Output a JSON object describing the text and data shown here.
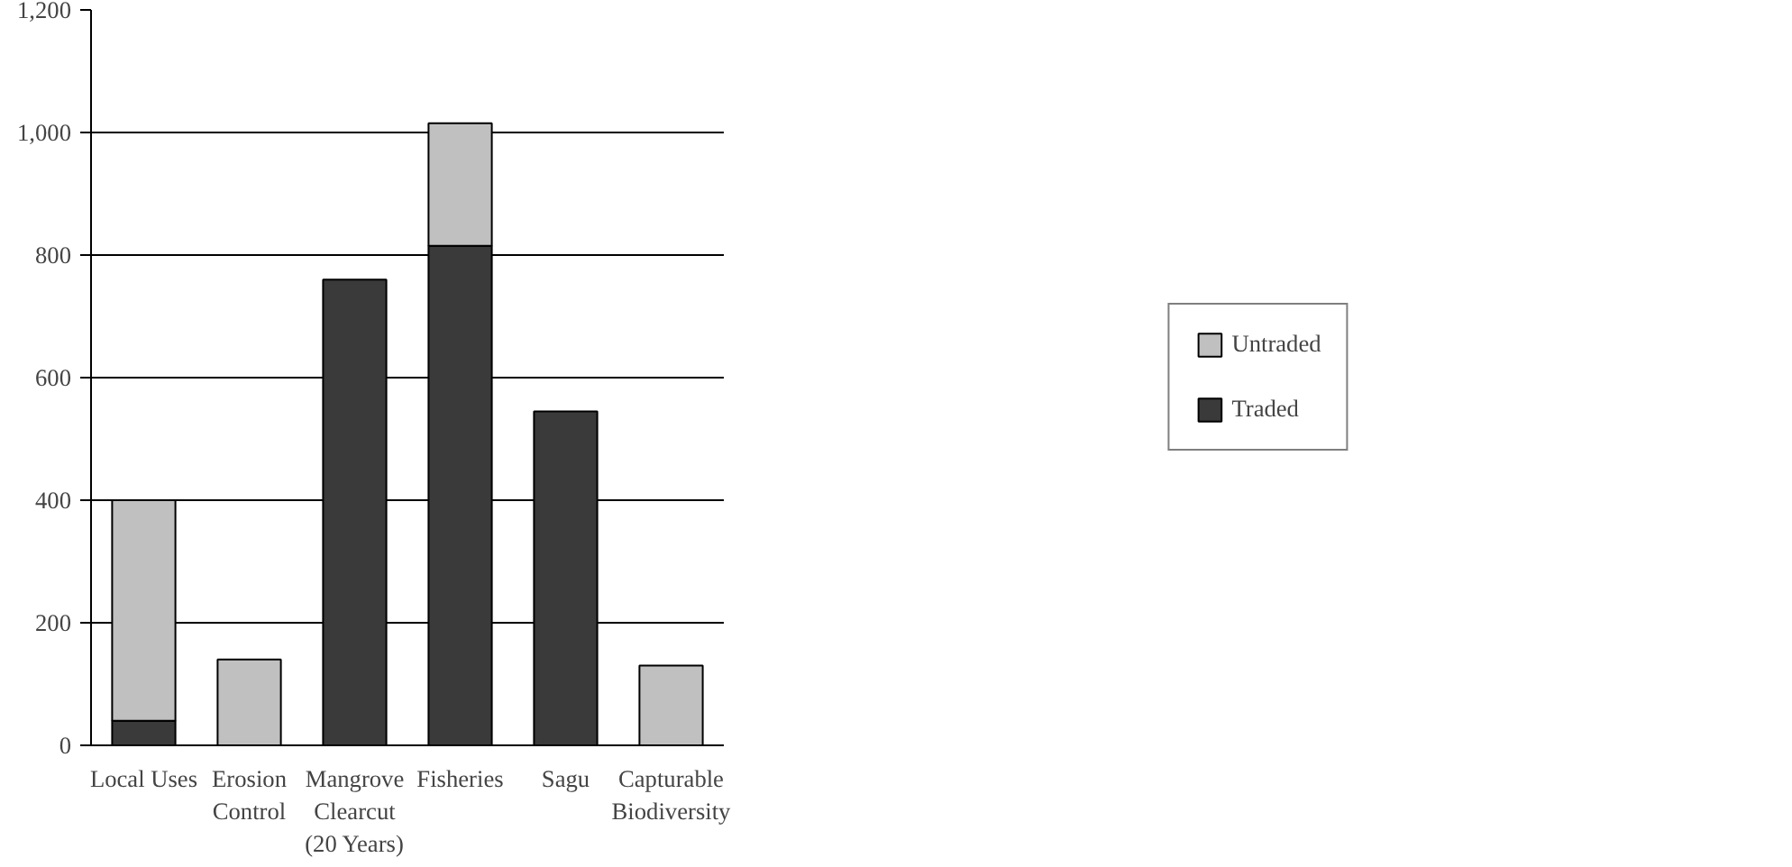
{
  "chart_data": {
    "type": "bar",
    "stacked": true,
    "categories": [
      "Local Uses",
      "Erosion\nControl",
      "Mangrove\nClearcut\n(20 Years)",
      "Fisheries",
      "Sagu",
      "Capturable\nBiodiversity"
    ],
    "series": [
      {
        "name": "Traded",
        "color": "#3a3a3a",
        "values": [
          40,
          0,
          760,
          815,
          545,
          0
        ]
      },
      {
        "name": "Untraded",
        "color": "#c0c0c0",
        "values": [
          360,
          140,
          0,
          200,
          0,
          130
        ]
      }
    ],
    "ylim": [
      0,
      1200
    ],
    "yticks": [
      0,
      {
        "value": 200,
        "label": "200"
      },
      {
        "value": 400,
        "label": "400"
      },
      {
        "value": 600,
        "label": "600"
      },
      {
        "value": 800,
        "label": "800"
      },
      {
        "value": 1000,
        "label": "1,000"
      },
      {
        "value": 1200,
        "label": "1,200"
      }
    ],
    "grid": "y",
    "legend": "right"
  }
}
